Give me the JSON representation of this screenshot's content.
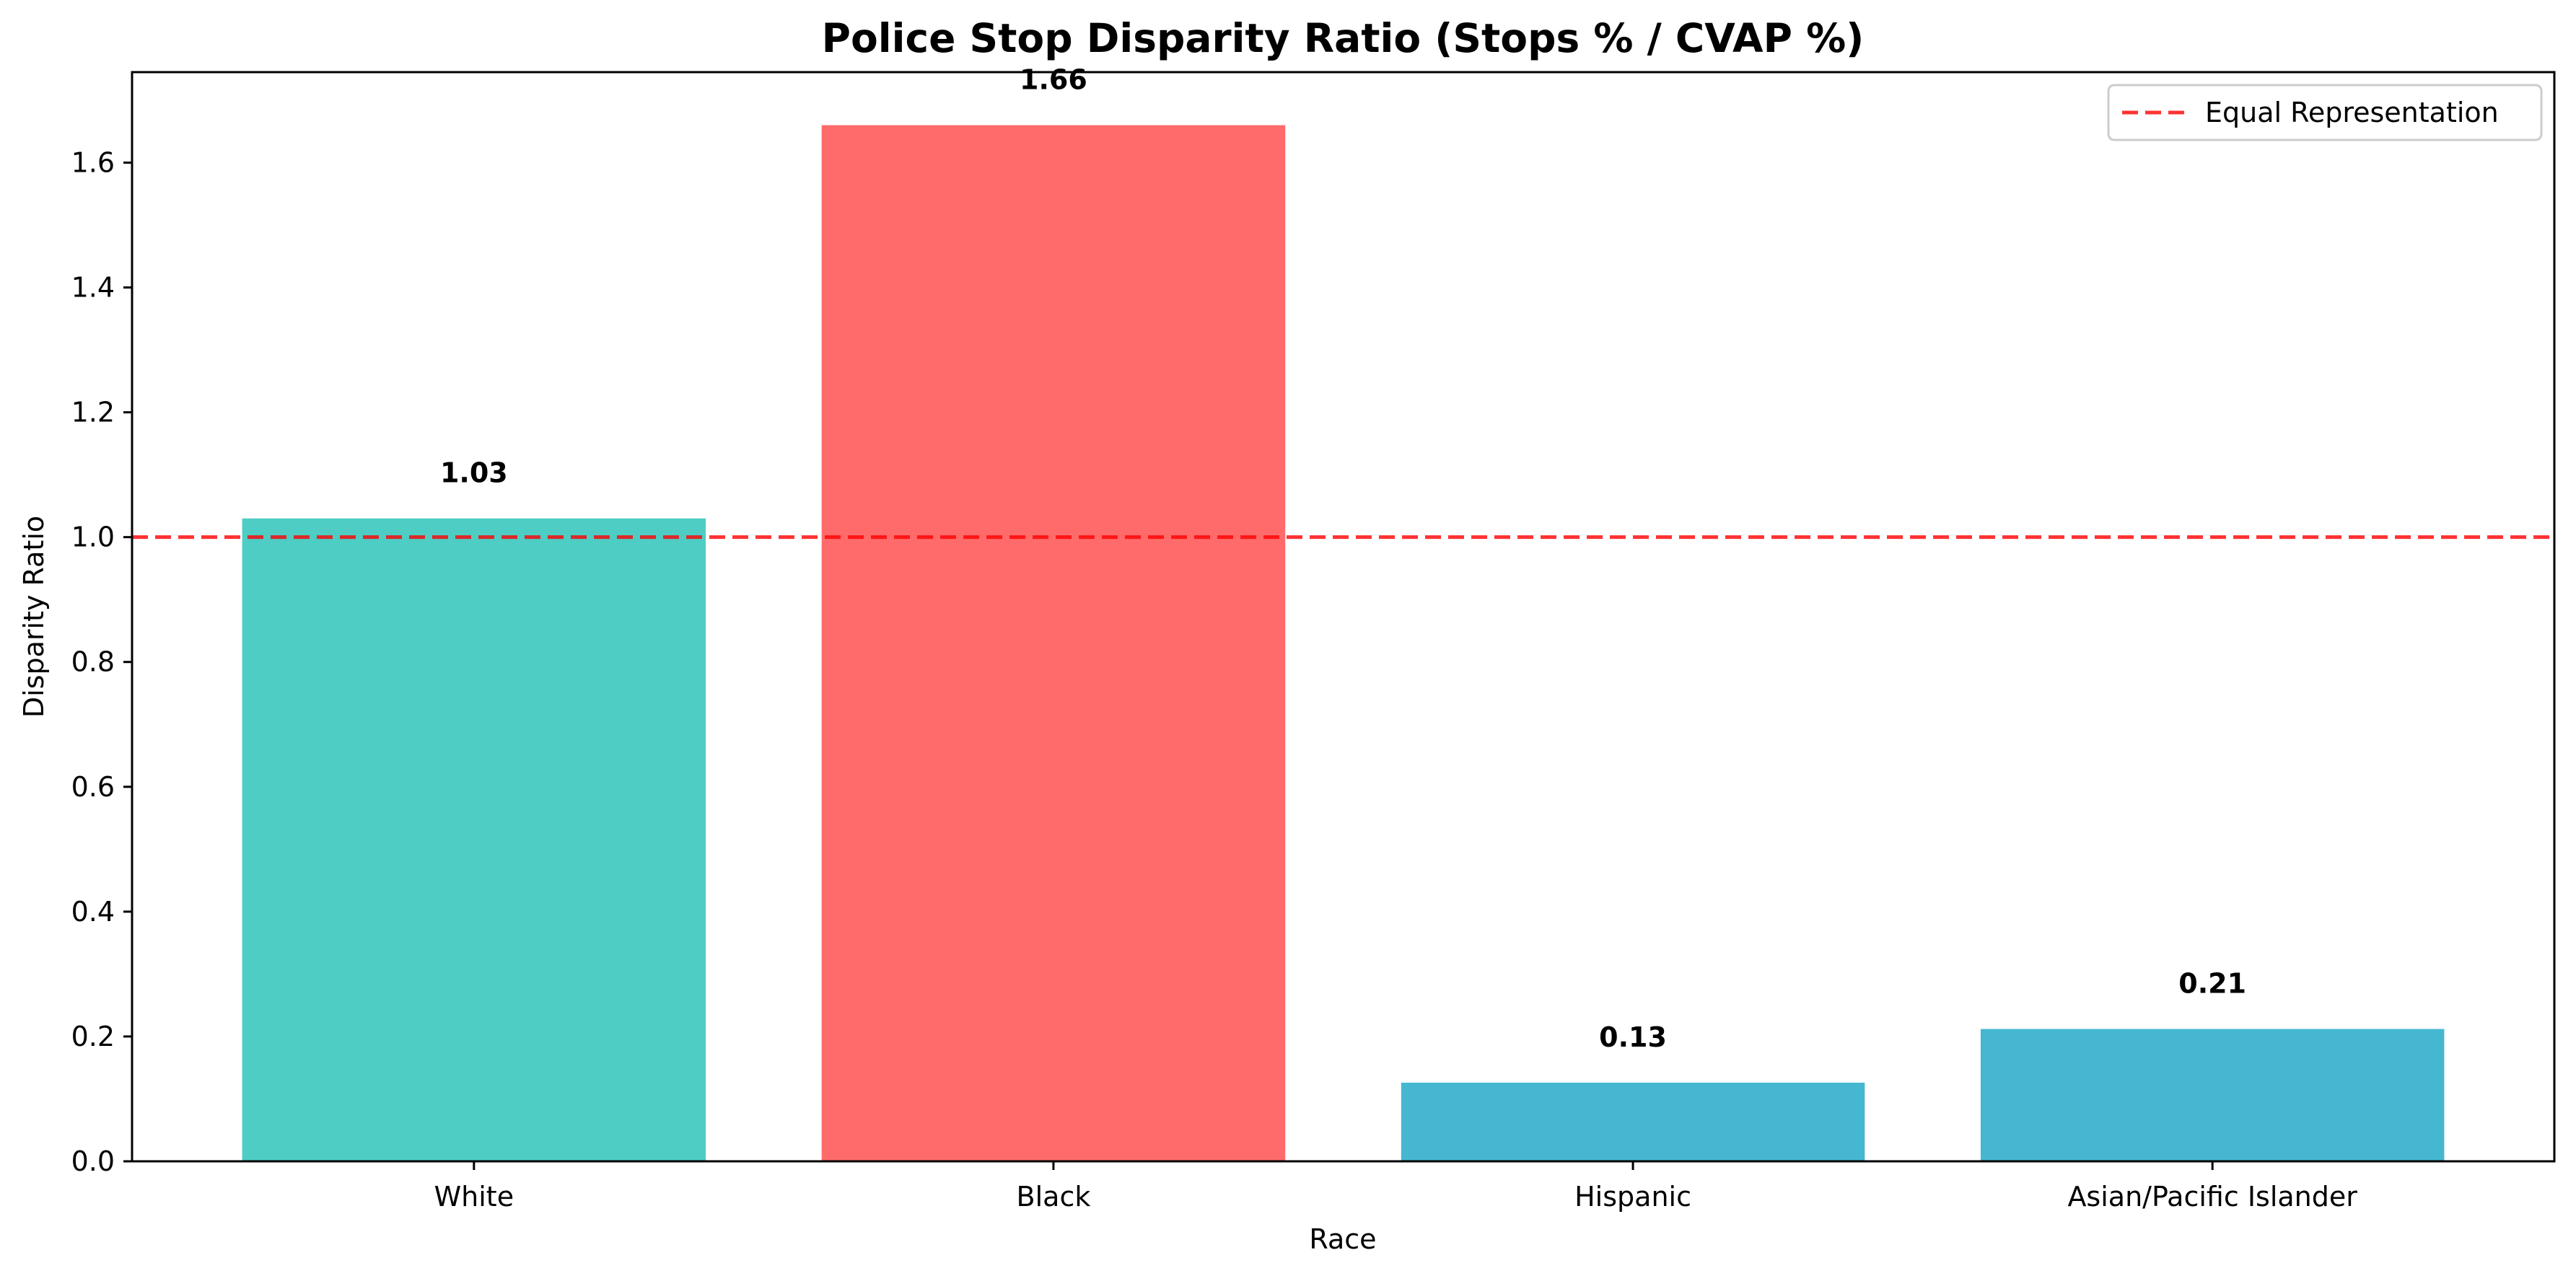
{
  "chart_data": {
    "type": "bar",
    "title": "Police Stop Disparity Ratio (Stops % / CVAP %)",
    "xlabel": "Race",
    "ylabel": "Disparity Ratio",
    "categories": [
      "White",
      "Black",
      "Hispanic",
      "Asian/Pacific Islander"
    ],
    "values": [
      1.03,
      1.66,
      0.126,
      0.212
    ],
    "value_labels": [
      "1.03",
      "1.66",
      "0.13",
      "0.21"
    ],
    "bar_colors": [
      "#4ECDC4",
      "#FF6B6B",
      "#45B7D1",
      "#45B7D1"
    ],
    "ylim": [
      0,
      1.745
    ],
    "yticks": [
      0.0,
      0.2,
      0.4,
      0.6,
      0.8,
      1.0,
      1.2,
      1.4,
      1.6
    ],
    "ytick_labels": [
      "0.0",
      "0.2",
      "0.4",
      "0.6",
      "0.8",
      "1.0",
      "1.2",
      "1.4",
      "1.6"
    ],
    "reference_line": {
      "value": 1.0,
      "color": "#FF0000",
      "style": "dashed",
      "label": "Equal Representation"
    },
    "legend": {
      "placement": "top-right",
      "entries": [
        "Equal Representation"
      ]
    },
    "grid": false
  }
}
